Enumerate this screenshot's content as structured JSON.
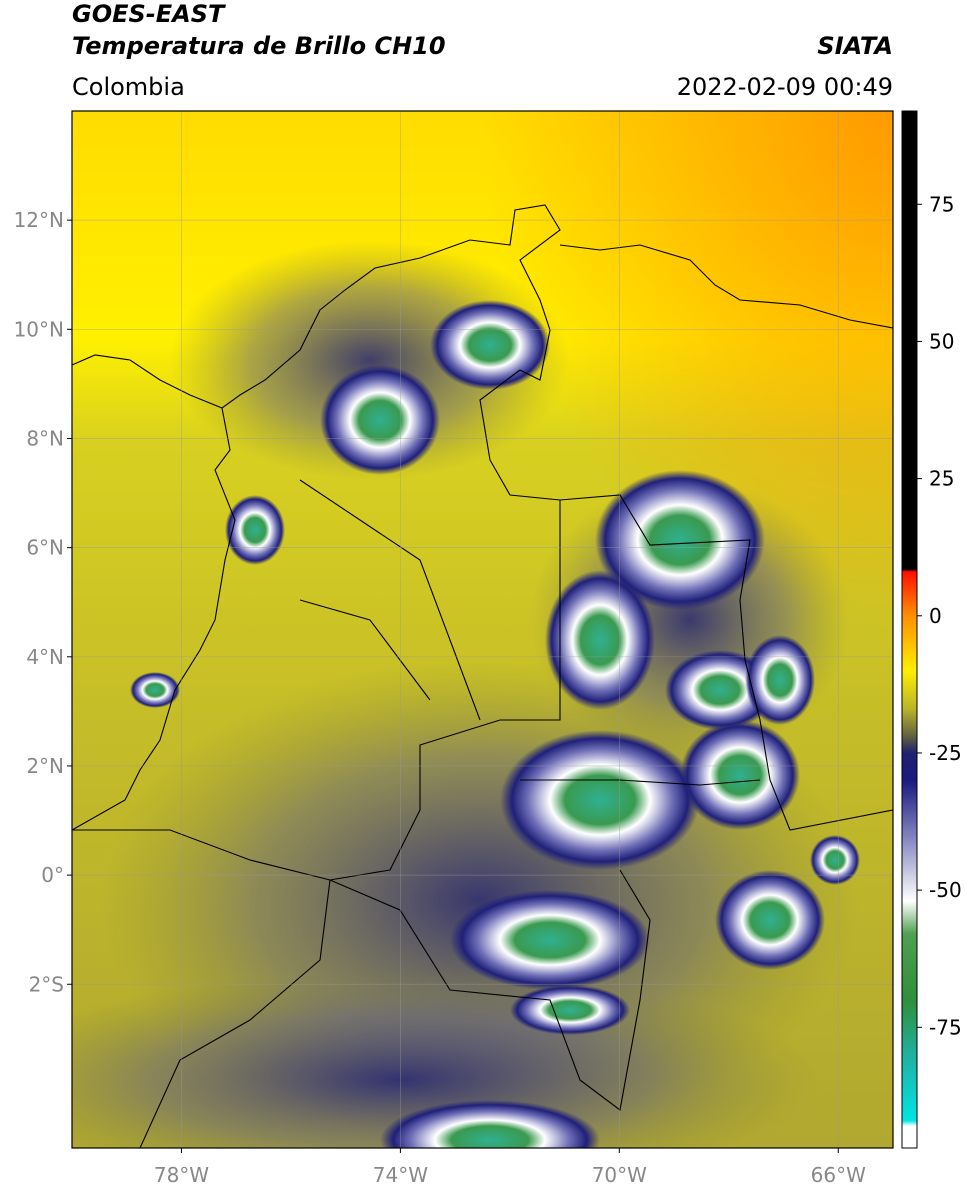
{
  "header": {
    "title": "GOES-EAST",
    "subtitle": "Temperatura de Brillo CH10",
    "source": "SIATA",
    "region": "Colombia",
    "datetime": "2022-02-09 00:49"
  },
  "map": {
    "lonlim": [
      -80,
      -65
    ],
    "latlim": [
      -5,
      14
    ],
    "lonticks": [
      {
        "value": -78,
        "label": "78°W"
      },
      {
        "value": -74,
        "label": "74°W"
      },
      {
        "value": -70,
        "label": "70°W"
      },
      {
        "value": -66,
        "label": "66°W"
      }
    ],
    "latticks": [
      {
        "value": 12,
        "label": "12°N"
      },
      {
        "value": 10,
        "label": "10°N"
      },
      {
        "value": 8,
        "label": "8°N"
      },
      {
        "value": 6,
        "label": "6°N"
      },
      {
        "value": 4,
        "label": "4°N"
      },
      {
        "value": 2,
        "label": "2°N"
      },
      {
        "value": 0,
        "label": "0°"
      },
      {
        "value": -2,
        "label": "2°S"
      }
    ],
    "grid": true
  },
  "colorbar": {
    "clim": [
      -97,
      92
    ],
    "ticks": [
      75,
      50,
      25,
      0,
      -25,
      -50,
      -75
    ],
    "colormap": [
      {
        "value": -97,
        "color": "#ffffff"
      },
      {
        "value": -93,
        "color": "#ffffff"
      },
      {
        "value": -92,
        "color": "#00e5e5"
      },
      {
        "value": -80,
        "color": "#20b0a0"
      },
      {
        "value": -70,
        "color": "#2f8f3a"
      },
      {
        "value": -58,
        "color": "#50a050"
      },
      {
        "value": -52,
        "color": "#ffffff"
      },
      {
        "value": -40,
        "color": "#8080c0"
      },
      {
        "value": -30,
        "color": "#1a1a80"
      },
      {
        "value": -25,
        "color": "#202070"
      },
      {
        "value": -22,
        "color": "#606040"
      },
      {
        "value": -17,
        "color": "#b8b428"
      },
      {
        "value": -10,
        "color": "#ffee00"
      },
      {
        "value": 0,
        "color": "#ff9000"
      },
      {
        "value": 8,
        "color": "#ff1000"
      },
      {
        "value": 8.5,
        "color": "#000000"
      },
      {
        "value": 92,
        "color": "#000000"
      }
    ]
  }
}
